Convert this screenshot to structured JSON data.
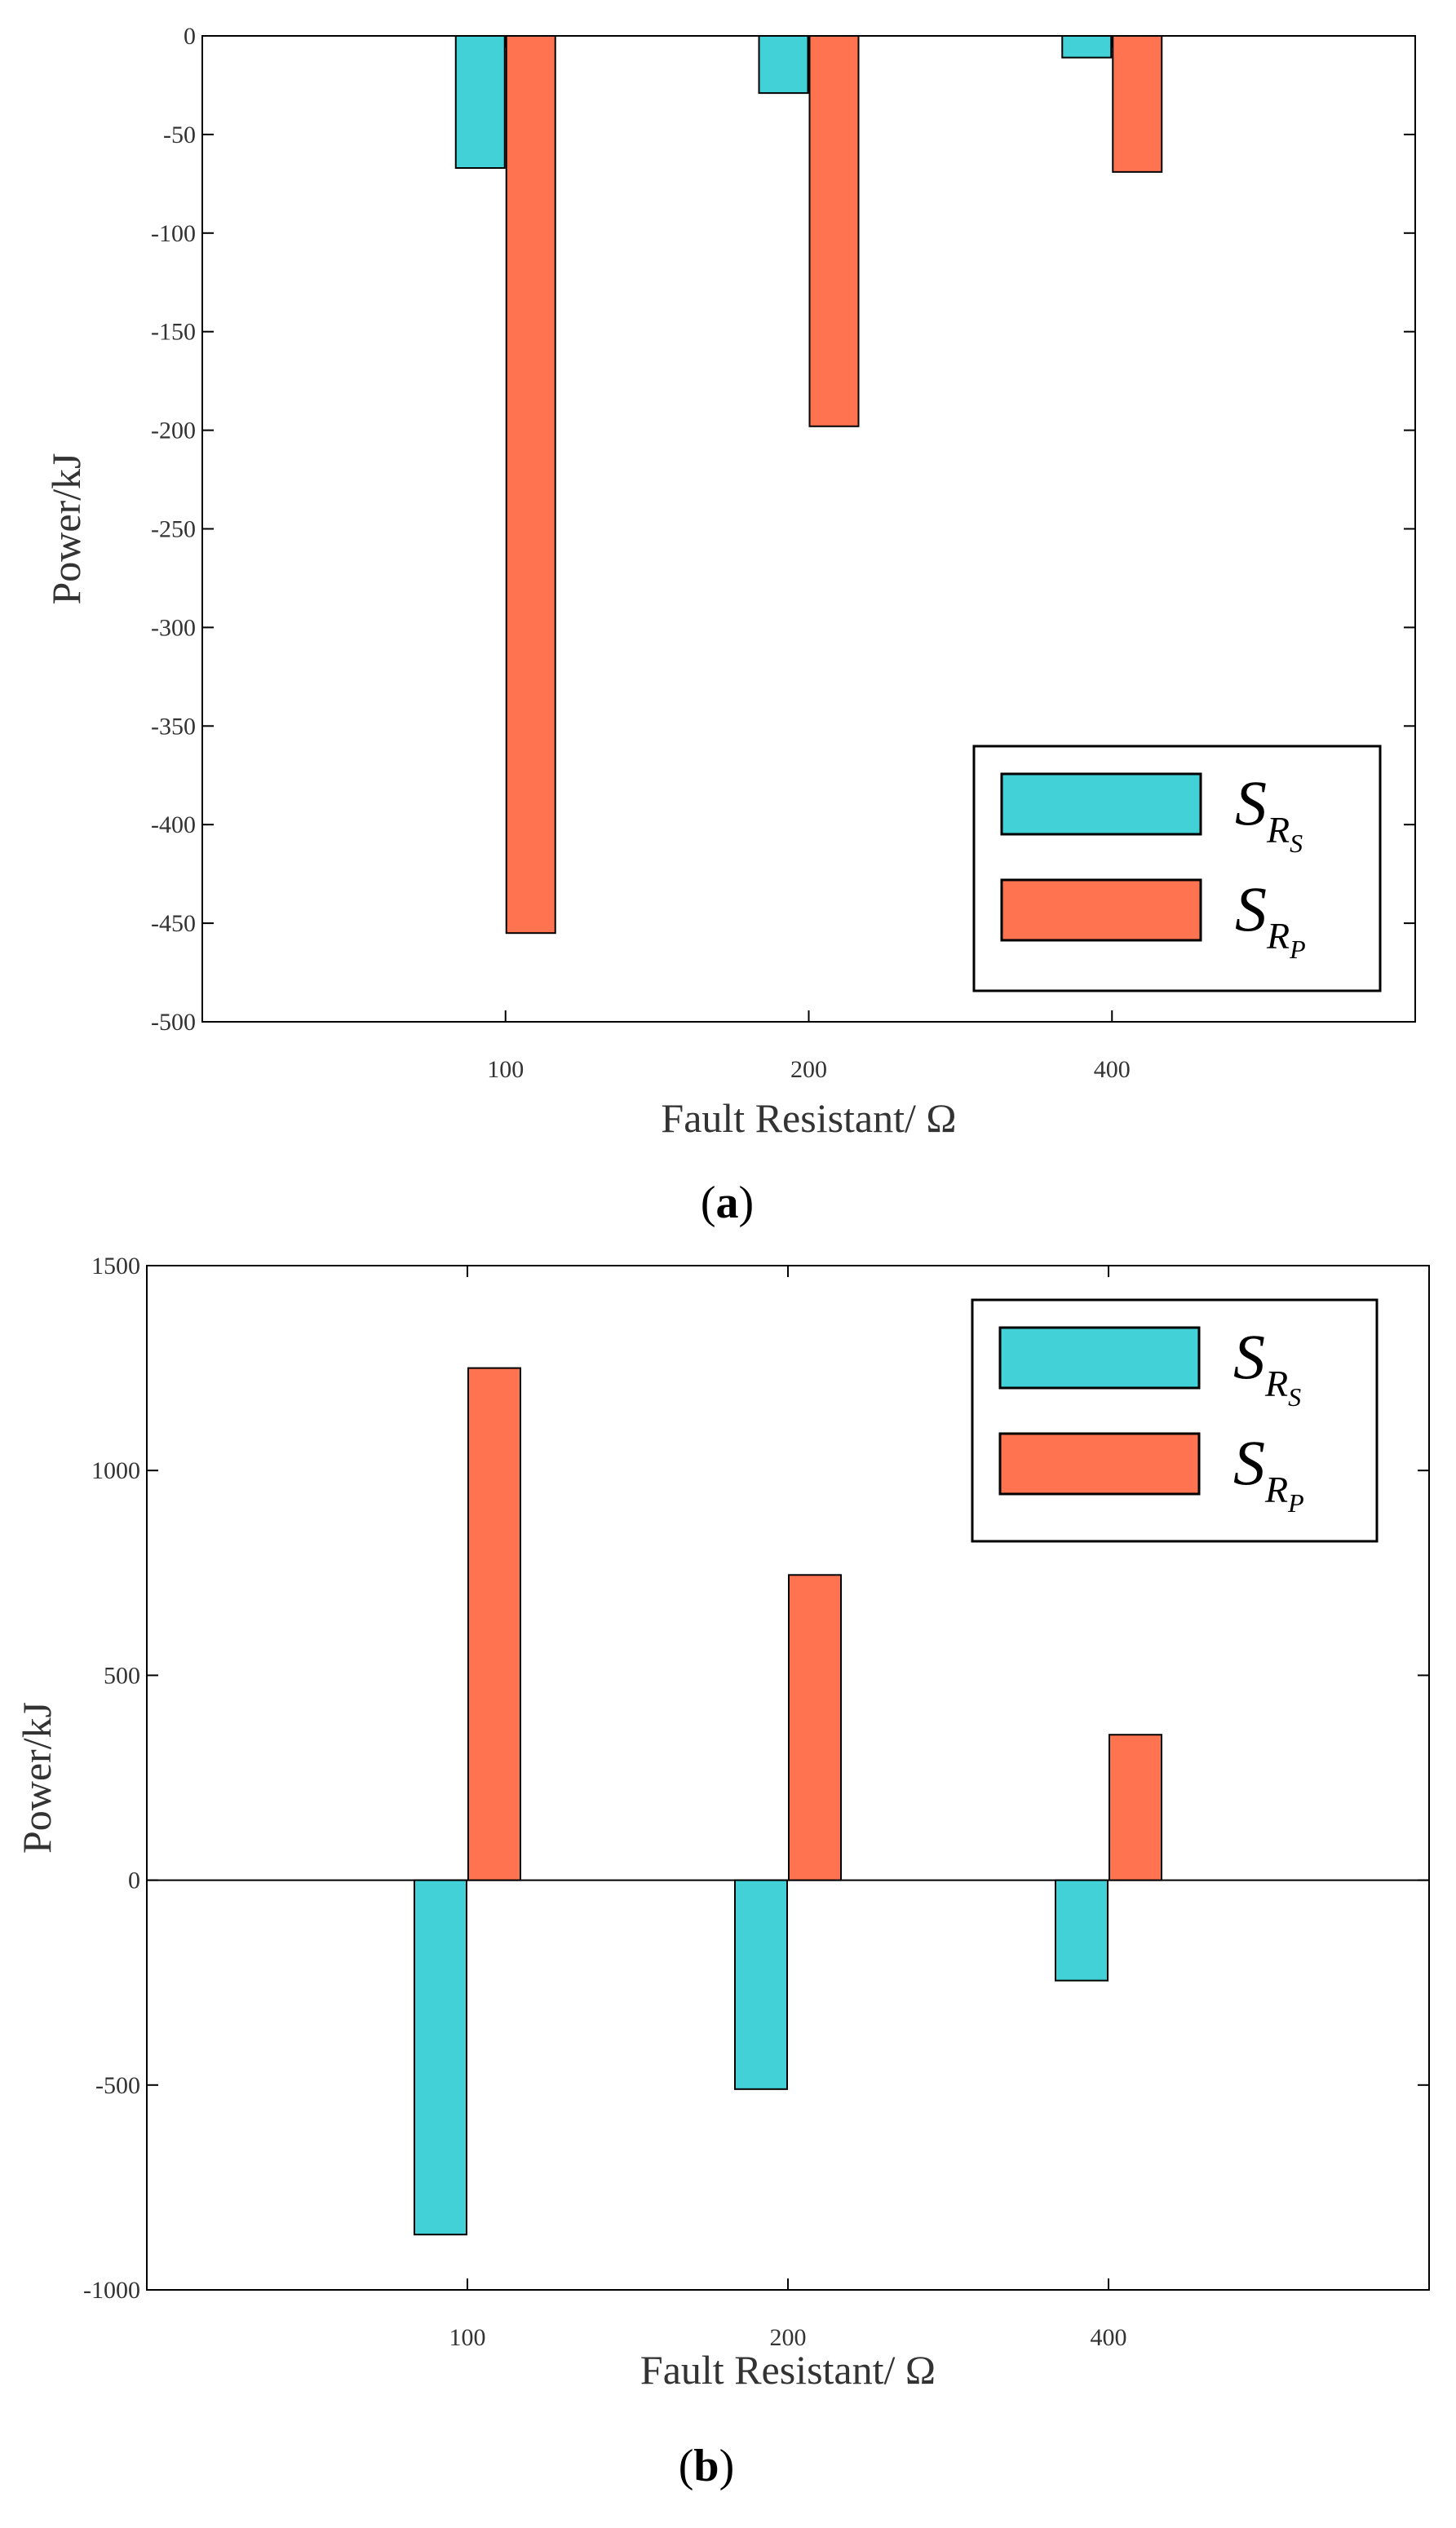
{
  "chart_data": [
    {
      "type": "bar",
      "panel_label": "a",
      "categories": [
        "100",
        "200",
        "400"
      ],
      "series": [
        {
          "name": "S_{R_S}",
          "legend_main": "S",
          "legend_sub": "R",
          "legend_subsub": "S",
          "color": "#42D1D7",
          "values": [
            -67,
            -29,
            -11
          ]
        },
        {
          "name": "S_{R_P}",
          "legend_main": "S",
          "legend_sub": "R",
          "legend_subsub": "P",
          "color": "#FF7350",
          "values": [
            -455,
            -198,
            -69
          ]
        }
      ],
      "ylim": [
        -500,
        0
      ],
      "yticks": [
        0,
        -50,
        -100,
        -150,
        -200,
        -250,
        -300,
        -350,
        -400,
        -450,
        -500
      ],
      "ytick_labels": [
        "0",
        "-50",
        "-100",
        "-150",
        "-200",
        "-250",
        "-300",
        "-350",
        "-400",
        "-450",
        "-500"
      ],
      "xlabel": "Fault Resistant/ Ω",
      "ylabel": "Power/kJ",
      "legend_position": "bottom-right",
      "grid": false
    },
    {
      "type": "bar",
      "panel_label": "b",
      "categories": [
        "100",
        "200",
        "400"
      ],
      "series": [
        {
          "name": "S_{R_S}",
          "legend_main": "S",
          "legend_sub": "R",
          "legend_subsub": "S",
          "color": "#42D1D7",
          "values": [
            -865,
            -510,
            -245
          ]
        },
        {
          "name": "S_{R_P}",
          "legend_main": "S",
          "legend_sub": "R",
          "legend_subsub": "P",
          "color": "#FF7350",
          "values": [
            1250,
            745,
            355
          ]
        }
      ],
      "ylim": [
        -1000,
        1500
      ],
      "yticks": [
        1500,
        1000,
        500,
        0,
        -500,
        -1000
      ],
      "ytick_labels": [
        "1500",
        "1000",
        "500",
        "0",
        "-500",
        "-1000"
      ],
      "xlabel": "Fault Resistant/ Ω",
      "ylabel": "Power/kJ",
      "legend_position": "top-right",
      "grid": false
    }
  ]
}
